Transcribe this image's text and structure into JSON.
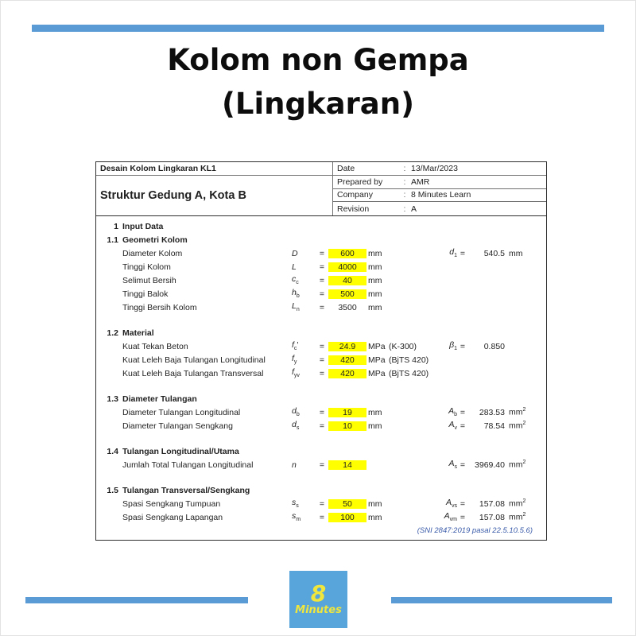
{
  "page": {
    "title_line1": "Kolom non Gempa",
    "title_line2": "(Lingkaran)",
    "accent_blue": "#5B9BD5",
    "highlight_yellow": "#FFFF00",
    "note_blue": "#3A5BA9"
  },
  "logo": {
    "number": "8",
    "word": "Minutes",
    "bg": "#58A5DC",
    "fg": "#F0E63C"
  },
  "sheet": {
    "doc_title": "Desain Kolom Lingkaran KL1",
    "project": "Struktur Gedung A, Kota B",
    "eq_sign": "=",
    "meta": [
      {
        "label": "Date",
        "sep": ":",
        "value": "13/Mar/2023"
      },
      {
        "label": "Prepared by",
        "sep": ":",
        "value": "AMR"
      },
      {
        "label": "Company",
        "sep": ":",
        "value": "8 Minutes Learn"
      },
      {
        "label": "Revision",
        "sep": ":",
        "value": "A"
      }
    ],
    "sections": [
      {
        "no": "1",
        "heading": "Input Data",
        "rows": []
      },
      {
        "no": "1.1",
        "heading": "Geometri Kolom",
        "rows": [
          {
            "label": "Diameter Kolom",
            "sym": "D",
            "sub": "",
            "suf": "",
            "value": "600",
            "hl": true,
            "unit": "mm",
            "paren": "",
            "extra": {
              "sym": "d",
              "sub": "1",
              "value": "540.5",
              "unit": "mm",
              "sup": false
            }
          },
          {
            "label": "Tinggi Kolom",
            "sym": "L",
            "sub": "",
            "suf": "",
            "value": "4000",
            "hl": true,
            "unit": "mm",
            "paren": ""
          },
          {
            "label": "Selimut Bersih",
            "sym": "c",
            "sub": "c",
            "suf": "",
            "value": "40",
            "hl": true,
            "unit": "mm",
            "paren": ""
          },
          {
            "label": "Tinggi Balok",
            "sym": "h",
            "sub": "b",
            "suf": "",
            "value": "500",
            "hl": true,
            "unit": "mm",
            "paren": ""
          },
          {
            "label": "Tinggi Bersih Kolom",
            "sym": "L",
            "sub": "n",
            "suf": "",
            "value": "3500",
            "hl": false,
            "unit": "mm",
            "paren": ""
          }
        ]
      },
      {
        "no": "1.2",
        "heading": "Material",
        "rows": [
          {
            "label": "Kuat Tekan Beton",
            "sym": "f",
            "sub": "c",
            "suf": "'",
            "value": "24.9",
            "hl": true,
            "unit": "MPa",
            "paren": "(K-300)",
            "extra": {
              "sym": "β",
              "sub": "1",
              "value": "0.850",
              "unit": "",
              "sup": false
            }
          },
          {
            "label": "Kuat Leleh Baja Tulangan Longitudinal",
            "sym": "f",
            "sub": "y",
            "suf": "",
            "value": "420",
            "hl": true,
            "unit": "MPa",
            "paren": "(BjTS 420)"
          },
          {
            "label": "Kuat Leleh Baja Tulangan Transversal",
            "sym": "f",
            "sub": "yv",
            "suf": "",
            "value": "420",
            "hl": true,
            "unit": "MPa",
            "paren": "(BjTS 420)"
          }
        ]
      },
      {
        "no": "1.3",
        "heading": "Diameter Tulangan",
        "rows": [
          {
            "label": "Diameter Tulangan Longitudinal",
            "sym": "d",
            "sub": "b",
            "suf": "",
            "value": "19",
            "hl": true,
            "unit": "mm",
            "paren": "",
            "extra": {
              "sym": "A",
              "sub": "b",
              "value": "283.53",
              "unit": "mm",
              "sup": true
            }
          },
          {
            "label": "Diameter Tulangan Sengkang",
            "sym": "d",
            "sub": "s",
            "suf": "",
            "value": "10",
            "hl": true,
            "unit": "mm",
            "paren": "",
            "extra": {
              "sym": "A",
              "sub": "v",
              "value": "78.54",
              "unit": "mm",
              "sup": true
            }
          }
        ]
      },
      {
        "no": "1.4",
        "heading": "Tulangan Longitudinal/Utama",
        "rows": [
          {
            "label": "Jumlah Total Tulangan Longitudinal",
            "sym": "n",
            "sub": "",
            "suf": "",
            "value": "14",
            "hl": true,
            "unit": "",
            "paren": "",
            "extra": {
              "sym": "A",
              "sub": "s",
              "value": "3969.40",
              "unit": "mm",
              "sup": true
            }
          }
        ]
      },
      {
        "no": "1.5",
        "heading": "Tulangan Transversal/Sengkang",
        "rows": [
          {
            "label": "Spasi Sengkang Tumpuan",
            "sym": "s",
            "sub": "s",
            "suf": "",
            "value": "50",
            "hl": true,
            "unit": "mm",
            "paren": "",
            "extra": {
              "sym": "A",
              "sub": "vs",
              "value": "157.08",
              "unit": "mm",
              "sup": true
            }
          },
          {
            "label": "Spasi Sengkang Lapangan",
            "sym": "s",
            "sub": "m",
            "suf": "",
            "value": "100",
            "hl": true,
            "unit": "mm",
            "paren": "",
            "extra": {
              "sym": "A",
              "sub": "vm",
              "value": "157.08",
              "unit": "mm",
              "sup": true
            }
          }
        ]
      }
    ],
    "note": "(SNI 2847:2019 pasal 22.5.10.5.6)"
  }
}
